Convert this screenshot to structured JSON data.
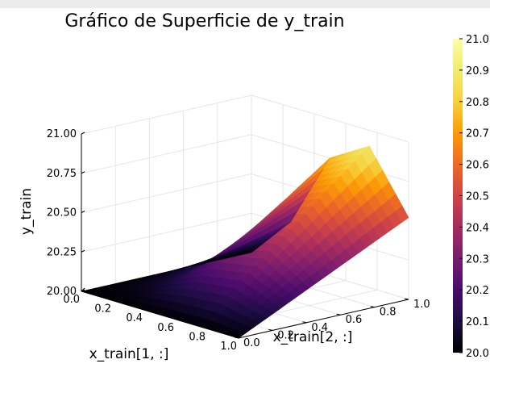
{
  "chart_data": {
    "type": "surface",
    "title": "Gráfico de Superficie de y_train",
    "xlabel": "x_train[1, :]",
    "ylabel": "x_train[2, :]",
    "zlabel": "y_train",
    "x_ticks": [
      "0.0",
      "0.2",
      "0.4",
      "0.6",
      "0.8",
      "1.0"
    ],
    "y_ticks": [
      "0.0",
      "0.2",
      "0.4",
      "0.6",
      "0.8",
      "1.0"
    ],
    "z_ticks": [
      "20.00",
      "20.25",
      "20.50",
      "20.75",
      "21.00"
    ],
    "xlim": [
      0,
      1
    ],
    "ylim": [
      0,
      1
    ],
    "zlim": [
      20,
      21
    ],
    "grid": true,
    "colormap": "inferno",
    "colorbar": {
      "range": [
        20.0,
        21.0
      ],
      "ticks": [
        "20.0",
        "20.1",
        "20.2",
        "20.3",
        "20.4",
        "20.5",
        "20.6",
        "20.7",
        "20.8",
        "20.9",
        "21.0"
      ]
    },
    "surface_samples": {
      "x": [
        0,
        0.25,
        0.5,
        0.75,
        1.0
      ],
      "y": [
        0,
        0.25,
        0.5,
        0.75,
        1.0
      ],
      "z": [
        [
          20.0,
          20.0,
          20.0,
          20.0,
          20.0
        ],
        [
          20.0,
          20.07,
          20.13,
          20.2,
          20.27
        ],
        [
          20.0,
          20.19,
          20.38,
          20.56,
          20.75
        ],
        [
          20.0,
          20.23,
          20.45,
          20.68,
          20.9
        ],
        [
          20.0,
          20.13,
          20.26,
          20.39,
          20.52
        ]
      ]
    }
  }
}
